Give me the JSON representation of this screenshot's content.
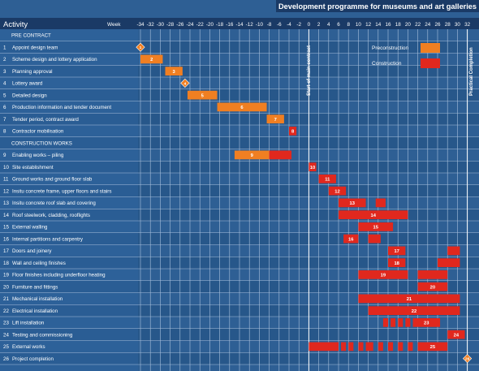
{
  "header": {
    "title": "Development programme for museums and art galleries",
    "activity_label": "Activity",
    "week_label": "Week"
  },
  "legend": {
    "items": [
      {
        "label": "Preconstruction",
        "color": "#f07f22"
      },
      {
        "label": "Construction",
        "color": "#e0281e"
      }
    ]
  },
  "colors": {
    "background": "#2e5f94",
    "band": "#2a5a8d",
    "header": "#1a3a66",
    "grid": "#a9c0dc"
  },
  "annotations": {
    "start_main_contract": "Start of main contract",
    "practical_completion": "Practical Completion"
  },
  "chart_data": {
    "type": "gantt",
    "x_axis": {
      "unit": "Week",
      "ticks": [
        -34,
        -32,
        -30,
        -28,
        -26,
        -24,
        -22,
        -20,
        -18,
        -16,
        -14,
        -12,
        -10,
        -8,
        -6,
        -4,
        -2,
        0,
        2,
        4,
        6,
        8,
        10,
        12,
        14,
        16,
        18,
        20,
        22,
        24,
        26,
        28,
        30,
        32
      ]
    },
    "milestones": [
      {
        "label": "Start of main contract",
        "week": 0
      },
      {
        "label": "Practical Completion",
        "week": 32
      }
    ],
    "rows": [
      {
        "num": "",
        "label": "PRE CONTRACT",
        "section": true,
        "bars": []
      },
      {
        "num": "1",
        "label": "Appoint design team",
        "bars": [],
        "diamonds": [
          {
            "week": -34,
            "label": "1"
          }
        ]
      },
      {
        "num": "2",
        "label": "Scheme design and lottery application",
        "bars": [
          {
            "start": -34,
            "end": -29.5,
            "kind": "pre",
            "label": "2"
          }
        ]
      },
      {
        "num": "3",
        "label": "Planning approval",
        "bars": [
          {
            "start": -29,
            "end": -25.5,
            "kind": "pre",
            "label": "3"
          }
        ]
      },
      {
        "num": "4",
        "label": "Lottery award",
        "bars": [],
        "diamonds": [
          {
            "week": -25,
            "label": "4"
          }
        ]
      },
      {
        "num": "5",
        "label": "Detailed design",
        "bars": [
          {
            "start": -24.5,
            "end": -18.5,
            "kind": "pre",
            "label": "5"
          }
        ]
      },
      {
        "num": "6",
        "label": "Production information and tender document",
        "bars": [
          {
            "start": -18.5,
            "end": -8.5,
            "kind": "pre",
            "label": "6"
          }
        ]
      },
      {
        "num": "7",
        "label": "Tender period, contract award",
        "bars": [
          {
            "start": -8.5,
            "end": -5,
            "kind": "pre",
            "label": "7"
          }
        ]
      },
      {
        "num": "8",
        "label": "Contractor mobilisation",
        "bars": [
          {
            "start": -4,
            "end": -2.5,
            "kind": "con",
            "label": "8"
          }
        ]
      },
      {
        "num": "",
        "label": "CONSTRUCTION WORKS",
        "section": true,
        "bars": []
      },
      {
        "num": "9",
        "label": "Enabling works – piling",
        "bars": [
          {
            "start": -15,
            "end": -8,
            "kind": "pre",
            "label": "9"
          },
          {
            "start": -8,
            "end": -3.5,
            "kind": "con",
            "label": ""
          }
        ]
      },
      {
        "num": "10",
        "label": "Site establishment",
        "bars": [
          {
            "start": 0,
            "end": 1.5,
            "kind": "con",
            "label": "10"
          }
        ]
      },
      {
        "num": "11",
        "label": "Ground works and ground floor slab",
        "bars": [
          {
            "start": 2,
            "end": 5.5,
            "kind": "con",
            "label": "11"
          }
        ]
      },
      {
        "num": "12",
        "label": "Insitu concrete frame, upper floors and stairs",
        "bars": [
          {
            "start": 4,
            "end": 7.5,
            "kind": "con",
            "label": "12"
          }
        ]
      },
      {
        "num": "13",
        "label": "Insitu concrete roof slab and covering",
        "bars": [
          {
            "start": 6,
            "end": 11.5,
            "kind": "con",
            "label": "13"
          },
          {
            "start": 13.5,
            "end": 15.5,
            "kind": "con",
            "label": ""
          }
        ]
      },
      {
        "num": "14",
        "label": "Roof steelwork, cladding, rooflights",
        "bars": [
          {
            "start": 6,
            "end": 20,
            "kind": "con",
            "label": "14"
          }
        ]
      },
      {
        "num": "15",
        "label": "External walling",
        "bars": [
          {
            "start": 10,
            "end": 17,
            "kind": "con",
            "label": "15"
          }
        ]
      },
      {
        "num": "16",
        "label": "Internal partitions and carpentry",
        "bars": [
          {
            "start": 7,
            "end": 10,
            "kind": "con",
            "label": "16"
          },
          {
            "start": 12,
            "end": 14.5,
            "kind": "con",
            "label": ""
          }
        ]
      },
      {
        "num": "17",
        "label": "Doors and joinery",
        "bars": [
          {
            "start": 16,
            "end": 19.5,
            "kind": "con",
            "label": "17"
          },
          {
            "start": 28,
            "end": 30.5,
            "kind": "con",
            "label": ""
          }
        ]
      },
      {
        "num": "18",
        "label": "Wall and ceiling finishes",
        "bars": [
          {
            "start": 16,
            "end": 19.5,
            "kind": "con",
            "label": "18"
          },
          {
            "start": 26,
            "end": 30.5,
            "kind": "con",
            "label": ""
          }
        ]
      },
      {
        "num": "19",
        "label": "Floor finishes including underfloor heating",
        "bars": [
          {
            "start": 10,
            "end": 20,
            "kind": "con",
            "label": "19"
          },
          {
            "start": 22,
            "end": 28,
            "kind": "con",
            "label": ""
          }
        ]
      },
      {
        "num": "20",
        "label": "Furniture and fittings",
        "bars": [
          {
            "start": 22,
            "end": 28,
            "kind": "con",
            "label": "20"
          }
        ]
      },
      {
        "num": "21",
        "label": "Mechanical installation",
        "bars": [
          {
            "start": 10,
            "end": 30.5,
            "kind": "con",
            "label": "21"
          }
        ]
      },
      {
        "num": "22",
        "label": "Electrical installation",
        "bars": [
          {
            "start": 12,
            "end": 30.5,
            "kind": "con",
            "label": "22"
          }
        ]
      },
      {
        "num": "23",
        "label": "Lift installation",
        "bars": [
          {
            "start": 15,
            "end": 16,
            "kind": "con",
            "label": ""
          },
          {
            "start": 16.5,
            "end": 17.5,
            "kind": "con",
            "label": ""
          },
          {
            "start": 18,
            "end": 19,
            "kind": "con",
            "label": ""
          },
          {
            "start": 19.5,
            "end": 20.5,
            "kind": "con",
            "label": ""
          },
          {
            "start": 21,
            "end": 26.5,
            "kind": "con",
            "label": "23"
          }
        ]
      },
      {
        "num": "24",
        "label": "Testing and commissioning",
        "bars": [
          {
            "start": 28,
            "end": 31.5,
            "kind": "con",
            "label": "24"
          }
        ]
      },
      {
        "num": "25",
        "label": "External works",
        "bars": [
          {
            "start": 0,
            "end": 6,
            "kind": "con",
            "label": ""
          },
          {
            "start": 6.5,
            "end": 7.5,
            "kind": "con",
            "label": ""
          },
          {
            "start": 8,
            "end": 9,
            "kind": "con",
            "label": ""
          },
          {
            "start": 10,
            "end": 11,
            "kind": "con",
            "label": ""
          },
          {
            "start": 11.5,
            "end": 13,
            "kind": "con",
            "label": ""
          },
          {
            "start": 14,
            "end": 15,
            "kind": "con",
            "label": ""
          },
          {
            "start": 16,
            "end": 17,
            "kind": "con",
            "label": ""
          },
          {
            "start": 18,
            "end": 19,
            "kind": "con",
            "label": ""
          },
          {
            "start": 20,
            "end": 21,
            "kind": "con",
            "label": ""
          },
          {
            "start": 22,
            "end": 28,
            "kind": "con",
            "label": "25"
          }
        ]
      },
      {
        "num": "26",
        "label": "Project completion",
        "bars": [],
        "diamonds": [
          {
            "week": 32,
            "label": "26"
          }
        ]
      }
    ]
  }
}
